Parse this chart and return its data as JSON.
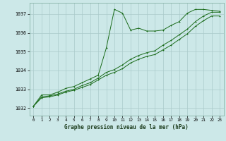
{
  "title": "Graphe pression niveau de la mer (hPa)",
  "background_color": "#cce8e8",
  "grid_color": "#aacaca",
  "line_color": "#1a6b1a",
  "xlim": [
    -0.5,
    23.5
  ],
  "ylim": [
    1031.6,
    1037.6
  ],
  "yticks": [
    1032,
    1033,
    1034,
    1035,
    1036,
    1037
  ],
  "xticks": [
    0,
    1,
    2,
    3,
    4,
    5,
    6,
    7,
    8,
    9,
    10,
    11,
    12,
    13,
    14,
    15,
    16,
    17,
    18,
    19,
    20,
    21,
    22,
    23
  ],
  "series1": {
    "x": [
      0,
      1,
      2,
      3,
      4,
      5,
      6,
      7,
      8,
      9,
      10,
      11,
      12,
      13,
      14,
      15,
      16,
      17,
      18,
      19,
      20,
      21,
      22,
      23
    ],
    "y": [
      1032.1,
      1032.7,
      1032.7,
      1032.85,
      1033.05,
      1033.15,
      1033.35,
      1033.55,
      1033.75,
      1035.2,
      1037.25,
      1037.05,
      1036.15,
      1036.25,
      1036.1,
      1036.1,
      1036.15,
      1036.4,
      1036.6,
      1037.05,
      1037.25,
      1037.25,
      1037.2,
      1037.15
    ]
  },
  "series2": {
    "x": [
      0,
      1,
      2,
      3,
      4,
      5,
      6,
      7,
      8,
      9,
      10,
      11,
      12,
      13,
      14,
      15,
      16,
      17,
      18,
      19,
      20,
      21,
      22,
      23
    ],
    "y": [
      1032.1,
      1032.6,
      1032.65,
      1032.75,
      1032.9,
      1033.0,
      1033.2,
      1033.35,
      1033.6,
      1033.9,
      1034.05,
      1034.3,
      1034.6,
      1034.8,
      1034.95,
      1035.05,
      1035.35,
      1035.6,
      1035.9,
      1036.2,
      1036.6,
      1036.9,
      1037.1,
      1037.1
    ]
  },
  "series3": {
    "x": [
      0,
      1,
      2,
      3,
      4,
      5,
      6,
      7,
      8,
      9,
      10,
      11,
      12,
      13,
      14,
      15,
      16,
      17,
      18,
      19,
      20,
      21,
      22,
      23
    ],
    "y": [
      1032.1,
      1032.55,
      1032.6,
      1032.7,
      1032.85,
      1032.95,
      1033.1,
      1033.25,
      1033.5,
      1033.75,
      1033.9,
      1034.1,
      1034.4,
      1034.6,
      1034.75,
      1034.85,
      1035.1,
      1035.35,
      1035.65,
      1035.95,
      1036.35,
      1036.65,
      1036.9,
      1036.9
    ]
  }
}
